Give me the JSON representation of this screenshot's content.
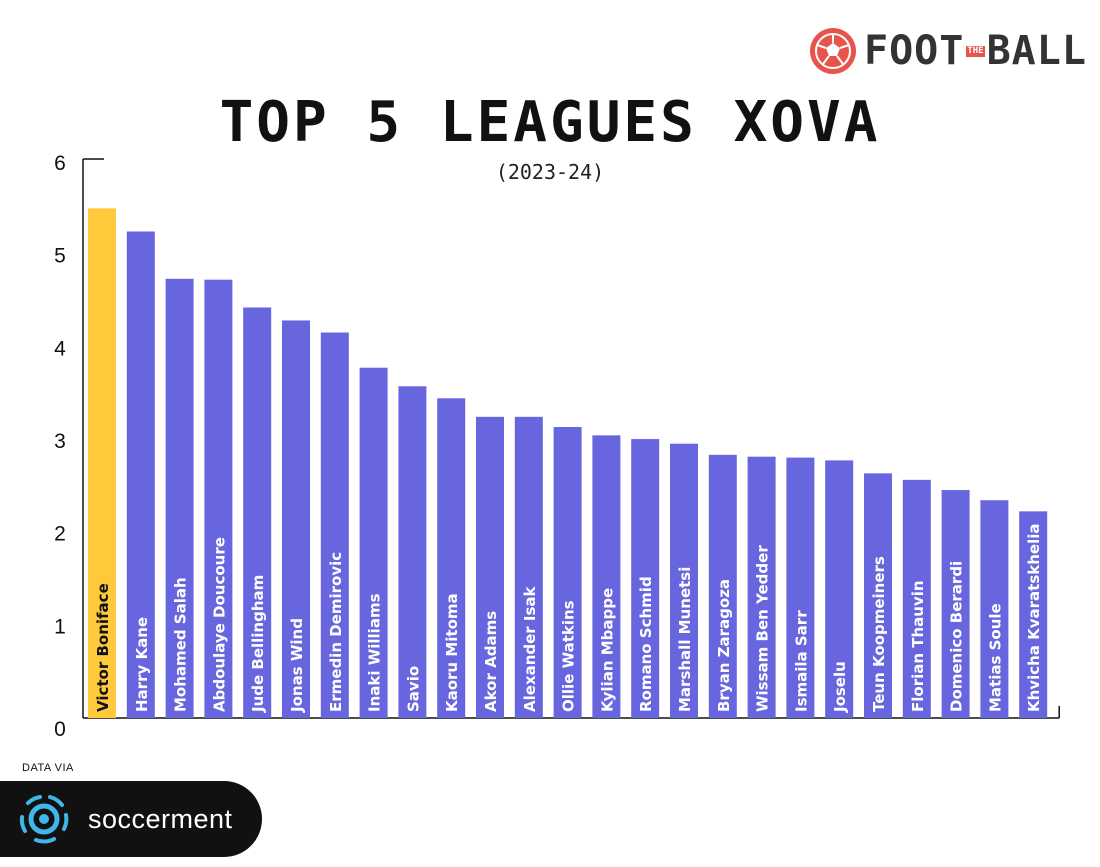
{
  "brand": {
    "part1": "FOOT",
    "part2": "THE",
    "part3": "BALL",
    "accent": "#e8544c"
  },
  "header": {
    "title": "TOP 5 LEAGUES XOVA",
    "subtitle": "(2023-24)"
  },
  "footer": {
    "data_via": "DATA VIA",
    "source": "soccerment"
  },
  "colors": {
    "highlight": "#ffc93c",
    "bar": "#6766df",
    "axis": "#111111",
    "label_on_highlight": "#111111",
    "label_on_bar": "#ffffff"
  },
  "chart_data": {
    "type": "bar",
    "title": "TOP 5 LEAGUES XOVA",
    "subtitle": "(2023-24)",
    "xlabel": "",
    "ylabel": "",
    "ylim": [
      0,
      6
    ],
    "yticks": [
      0,
      1,
      2,
      3,
      4,
      5,
      6
    ],
    "grid": false,
    "legend": "none",
    "highlight_index": 0,
    "categories": [
      "Victor Boniface",
      "Harry Kane",
      "Mohamed Salah",
      "Abdoulaye Doucoure",
      "Jude Bellingham",
      "Jonas Wind",
      "Ermedin Demirovic",
      "Inaki Williams",
      "Savio",
      "Kaoru Mitoma",
      "Akor Adams",
      "Alexander Isak",
      "Ollie Watkins",
      "Kylian Mbappe",
      "Romano Schmid",
      "Marshall Munetsi",
      "Bryan Zaragoza",
      "Wissam Ben Yedder",
      "Ismaila Sarr",
      "Joselu",
      "Teun Koopmeiners",
      "Florian Thauvin",
      "Domenico Berardi",
      "Matias Soule",
      "Khvicha Kvaratskhelia"
    ],
    "values": [
      5.5,
      5.25,
      4.74,
      4.73,
      4.43,
      4.29,
      4.16,
      3.78,
      3.58,
      3.45,
      3.25,
      3.25,
      3.14,
      3.05,
      3.01,
      2.96,
      2.84,
      2.82,
      2.81,
      2.78,
      2.64,
      2.57,
      2.46,
      2.35,
      2.23
    ]
  }
}
